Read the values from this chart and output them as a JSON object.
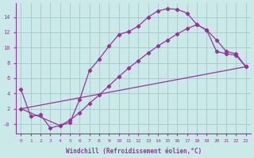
{
  "background_color": "#cce9e9",
  "grid_color": "#aacccc",
  "line_color": "#993399",
  "xlabel": "Windchill (Refroidissement éolien,°C)",
  "x_ticks": [
    0,
    1,
    2,
    3,
    4,
    5,
    6,
    7,
    8,
    9,
    10,
    11,
    12,
    13,
    14,
    15,
    16,
    17,
    18,
    19,
    20,
    21,
    22,
    23
  ],
  "y_ticks": [
    0,
    2,
    4,
    6,
    8,
    10,
    12,
    14
  ],
  "y_tick_labels": [
    "-0",
    "2",
    "4",
    "6",
    "8",
    "10",
    "12",
    "14"
  ],
  "ylim": [
    -1.2,
    15.8
  ],
  "xlim": [
    -0.5,
    23.5
  ],
  "curve1_x": [
    0,
    1,
    2,
    3,
    4,
    5,
    6,
    7,
    8,
    9,
    10,
    11,
    12,
    13,
    14,
    15,
    16,
    17,
    18,
    19,
    20,
    21,
    22,
    23
  ],
  "curve1_y": [
    4.5,
    1.0,
    1.2,
    -0.5,
    -0.2,
    0.2,
    3.2,
    7.0,
    8.5,
    10.2,
    11.7,
    12.1,
    12.8,
    14.0,
    14.8,
    15.1,
    15.0,
    14.5,
    13.0,
    12.3,
    11.0,
    9.5,
    9.2,
    7.5
  ],
  "curve2_x": [
    0,
    23
  ],
  "curve2_y": [
    2.0,
    7.5
  ],
  "curve3_x": [
    0,
    4,
    5,
    6,
    7,
    8,
    9,
    10,
    11,
    12,
    13,
    14,
    15,
    16,
    17,
    18,
    19,
    20,
    21,
    22,
    23
  ],
  "curve3_y": [
    2.0,
    -0.2,
    0.5,
    1.5,
    2.7,
    3.8,
    5.0,
    6.2,
    7.3,
    8.3,
    9.3,
    10.2,
    11.0,
    11.8,
    12.5,
    13.0,
    12.3,
    9.5,
    9.2,
    9.0,
    7.5
  ]
}
